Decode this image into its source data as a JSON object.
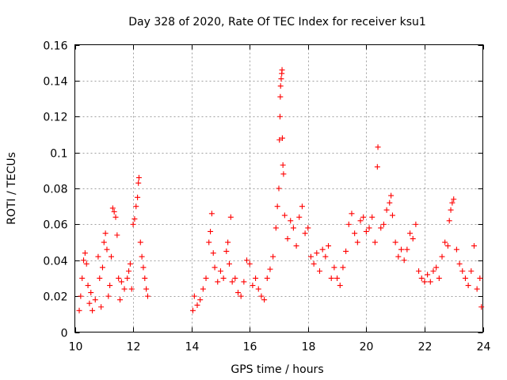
{
  "chart_data": {
    "type": "scatter",
    "title": "Day 328 of 2020, Rate Of TEC Index for receiver ksu1",
    "xlabel": "GPS time / hours",
    "ylabel": "ROTI / TECUs",
    "xlim": [
      10,
      24
    ],
    "ylim": [
      0,
      0.16
    ],
    "xticks": [
      10,
      12,
      14,
      16,
      18,
      20,
      22,
      24
    ],
    "xtick_labels": [
      "10",
      "12",
      "14",
      "16",
      "18",
      "20",
      "22",
      "24"
    ],
    "yticks": [
      0,
      0.02,
      0.04,
      0.06,
      0.08,
      0.1,
      0.12,
      0.14,
      0.16
    ],
    "ytick_labels": [
      "0",
      "0.02",
      "0.04",
      "0.06",
      "0.08",
      "0.1",
      "0.12",
      "0.14",
      "0.16"
    ],
    "grid": true,
    "marker": "+",
    "color": "#ff0000",
    "series": [
      {
        "name": "ROTI",
        "points": [
          [
            10.15,
            0.012
          ],
          [
            10.2,
            0.02
          ],
          [
            10.25,
            0.03
          ],
          [
            10.3,
            0.04
          ],
          [
            10.35,
            0.044
          ],
          [
            10.4,
            0.038
          ],
          [
            10.45,
            0.026
          ],
          [
            10.5,
            0.016
          ],
          [
            10.55,
            0.022
          ],
          [
            10.6,
            0.012
          ],
          [
            10.7,
            0.018
          ],
          [
            10.8,
            0.042
          ],
          [
            10.85,
            0.03
          ],
          [
            10.9,
            0.014
          ],
          [
            10.95,
            0.036
          ],
          [
            11.0,
            0.05
          ],
          [
            11.05,
            0.055
          ],
          [
            11.1,
            0.046
          ],
          [
            11.15,
            0.02
          ],
          [
            11.2,
            0.026
          ],
          [
            11.25,
            0.042
          ],
          [
            11.3,
            0.069
          ],
          [
            11.35,
            0.067
          ],
          [
            11.4,
            0.064
          ],
          [
            11.45,
            0.054
          ],
          [
            11.5,
            0.03
          ],
          [
            11.55,
            0.018
          ],
          [
            11.6,
            0.028
          ],
          [
            11.7,
            0.024
          ],
          [
            11.8,
            0.03
          ],
          [
            11.85,
            0.034
          ],
          [
            11.9,
            0.038
          ],
          [
            11.95,
            0.024
          ],
          [
            12.0,
            0.06
          ],
          [
            12.05,
            0.063
          ],
          [
            12.1,
            0.07
          ],
          [
            12.15,
            0.075
          ],
          [
            12.18,
            0.083
          ],
          [
            12.2,
            0.086
          ],
          [
            12.25,
            0.05
          ],
          [
            12.3,
            0.042
          ],
          [
            12.35,
            0.036
          ],
          [
            12.4,
            0.03
          ],
          [
            12.45,
            0.024
          ],
          [
            12.5,
            0.02
          ],
          [
            14.05,
            0.012
          ],
          [
            14.1,
            0.02
          ],
          [
            14.2,
            0.015
          ],
          [
            14.3,
            0.018
          ],
          [
            14.4,
            0.024
          ],
          [
            14.5,
            0.03
          ],
          [
            14.6,
            0.05
          ],
          [
            14.65,
            0.056
          ],
          [
            14.7,
            0.066
          ],
          [
            14.75,
            0.044
          ],
          [
            14.8,
            0.036
          ],
          [
            14.9,
            0.028
          ],
          [
            15.0,
            0.034
          ],
          [
            15.1,
            0.03
          ],
          [
            15.2,
            0.045
          ],
          [
            15.25,
            0.05
          ],
          [
            15.3,
            0.038
          ],
          [
            15.35,
            0.064
          ],
          [
            15.4,
            0.028
          ],
          [
            15.5,
            0.03
          ],
          [
            15.6,
            0.022
          ],
          [
            15.7,
            0.02
          ],
          [
            15.8,
            0.028
          ],
          [
            15.9,
            0.04
          ],
          [
            16.0,
            0.038
          ],
          [
            16.1,
            0.026
          ],
          [
            16.2,
            0.03
          ],
          [
            16.3,
            0.024
          ],
          [
            16.4,
            0.02
          ],
          [
            16.5,
            0.018
          ],
          [
            16.6,
            0.03
          ],
          [
            16.7,
            0.035
          ],
          [
            16.8,
            0.042
          ],
          [
            16.9,
            0.058
          ],
          [
            16.95,
            0.07
          ],
          [
            17.0,
            0.08
          ],
          [
            17.02,
            0.107
          ],
          [
            17.04,
            0.12
          ],
          [
            17.05,
            0.131
          ],
          [
            17.06,
            0.137
          ],
          [
            17.08,
            0.141
          ],
          [
            17.1,
            0.144
          ],
          [
            17.11,
            0.146
          ],
          [
            17.12,
            0.108
          ],
          [
            17.14,
            0.093
          ],
          [
            17.16,
            0.088
          ],
          [
            17.2,
            0.065
          ],
          [
            17.3,
            0.052
          ],
          [
            17.4,
            0.062
          ],
          [
            17.5,
            0.058
          ],
          [
            17.6,
            0.048
          ],
          [
            17.7,
            0.064
          ],
          [
            17.8,
            0.07
          ],
          [
            17.9,
            0.055
          ],
          [
            18.0,
            0.058
          ],
          [
            18.1,
            0.042
          ],
          [
            18.2,
            0.038
          ],
          [
            18.3,
            0.044
          ],
          [
            18.4,
            0.034
          ],
          [
            18.5,
            0.046
          ],
          [
            18.6,
            0.042
          ],
          [
            18.7,
            0.048
          ],
          [
            18.8,
            0.03
          ],
          [
            18.9,
            0.036
          ],
          [
            19.0,
            0.03
          ],
          [
            19.1,
            0.026
          ],
          [
            19.2,
            0.036
          ],
          [
            19.3,
            0.045
          ],
          [
            19.4,
            0.06
          ],
          [
            19.5,
            0.066
          ],
          [
            19.6,
            0.055
          ],
          [
            19.7,
            0.05
          ],
          [
            19.8,
            0.062
          ],
          [
            19.9,
            0.064
          ],
          [
            20.0,
            0.056
          ],
          [
            20.1,
            0.058
          ],
          [
            20.2,
            0.064
          ],
          [
            20.3,
            0.05
          ],
          [
            20.38,
            0.092
          ],
          [
            20.4,
            0.103
          ],
          [
            20.5,
            0.058
          ],
          [
            20.6,
            0.06
          ],
          [
            20.7,
            0.068
          ],
          [
            20.8,
            0.072
          ],
          [
            20.85,
            0.076
          ],
          [
            20.9,
            0.065
          ],
          [
            21.0,
            0.05
          ],
          [
            21.1,
            0.042
          ],
          [
            21.2,
            0.046
          ],
          [
            21.3,
            0.04
          ],
          [
            21.4,
            0.046
          ],
          [
            21.5,
            0.055
          ],
          [
            21.6,
            0.052
          ],
          [
            21.7,
            0.06
          ],
          [
            21.8,
            0.034
          ],
          [
            21.9,
            0.03
          ],
          [
            22.0,
            0.028
          ],
          [
            22.1,
            0.032
          ],
          [
            22.2,
            0.028
          ],
          [
            22.3,
            0.034
          ],
          [
            22.4,
            0.036
          ],
          [
            22.5,
            0.03
          ],
          [
            22.6,
            0.042
          ],
          [
            22.7,
            0.05
          ],
          [
            22.8,
            0.048
          ],
          [
            22.85,
            0.062
          ],
          [
            22.9,
            0.068
          ],
          [
            22.95,
            0.072
          ],
          [
            23.0,
            0.074
          ],
          [
            23.1,
            0.046
          ],
          [
            23.2,
            0.038
          ],
          [
            23.3,
            0.034
          ],
          [
            23.4,
            0.03
          ],
          [
            23.5,
            0.026
          ],
          [
            23.6,
            0.034
          ],
          [
            23.7,
            0.048
          ],
          [
            23.8,
            0.024
          ],
          [
            23.9,
            0.03
          ],
          [
            23.95,
            0.014
          ]
        ]
      }
    ]
  }
}
